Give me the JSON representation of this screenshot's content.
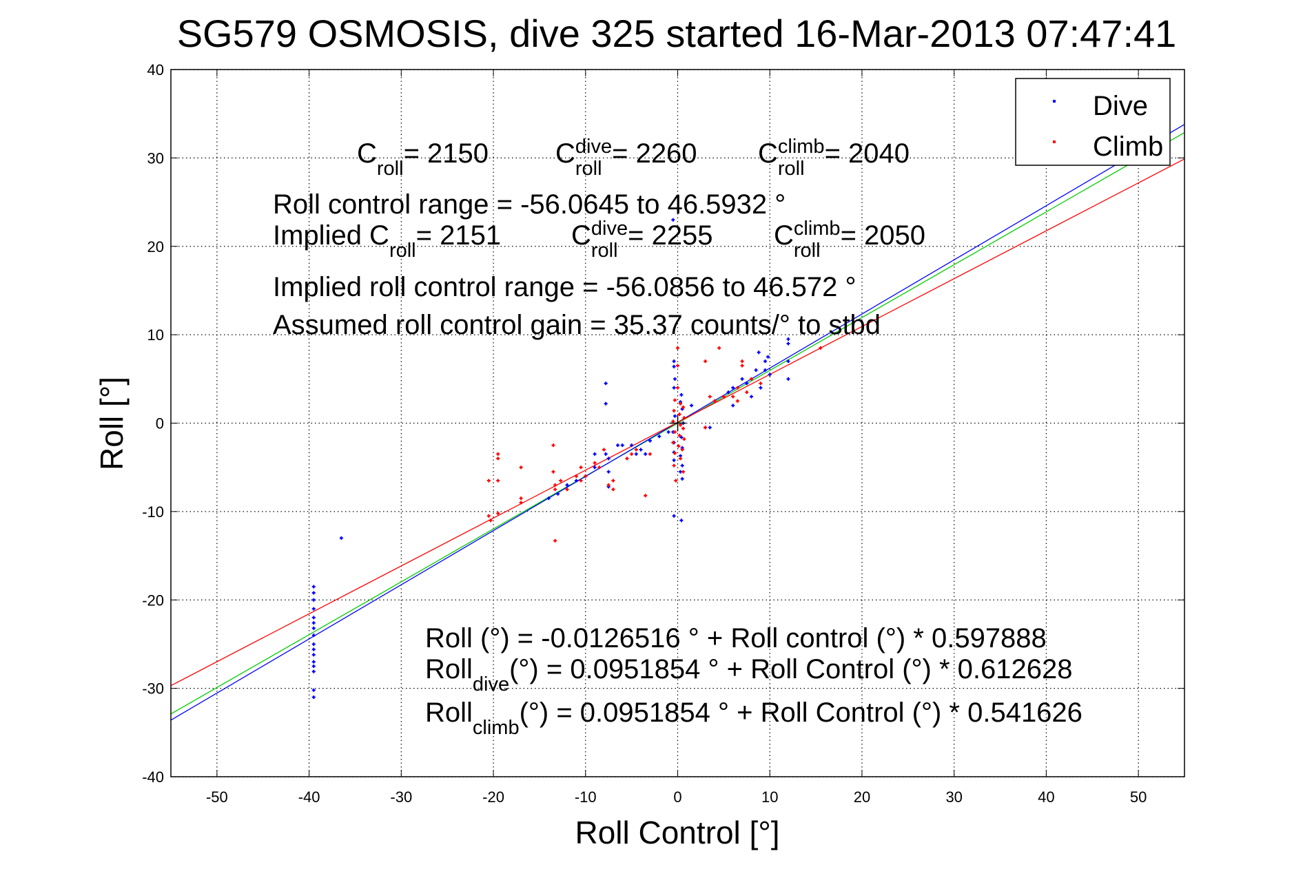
{
  "chart_data": {
    "type": "scatter",
    "title": "SG579 OSMOSIS, dive 325 started 16-Mar-2013 07:47:41",
    "xlabel": "Roll Control [°]",
    "ylabel": "Roll [°]",
    "xlim": [
      -55,
      55
    ],
    "ylim": [
      -40,
      40
    ],
    "xticks": [
      -50,
      -40,
      -30,
      -20,
      -10,
      0,
      10,
      20,
      30,
      40,
      50
    ],
    "yticks": [
      -40,
      -30,
      -20,
      -10,
      0,
      10,
      20,
      30,
      40
    ],
    "grid": true,
    "legend": {
      "position": "top-right",
      "entries": [
        "Dive",
        "Climb"
      ]
    },
    "colors": {
      "dive": "#0000ff",
      "climb": "#ff0000",
      "fit_all": "#00cc00"
    },
    "series": [
      {
        "name": "Dive",
        "color": "#0000ff",
        "points": [
          [
            -39.5,
            -18.5
          ],
          [
            -39.5,
            -19.2
          ],
          [
            -39.5,
            -20
          ],
          [
            -39.5,
            -21
          ],
          [
            -39.5,
            -22
          ],
          [
            -39.5,
            -22.6
          ],
          [
            -39.5,
            -23.2
          ],
          [
            -39.5,
            -24
          ],
          [
            -39.5,
            -25
          ],
          [
            -39.5,
            -25.6
          ],
          [
            -39.5,
            -26.2
          ],
          [
            -39.5,
            -27
          ],
          [
            -39.5,
            -27.5
          ],
          [
            -39.5,
            -28.1
          ],
          [
            -39.5,
            -30.2
          ],
          [
            -39.5,
            -31
          ],
          [
            -36.5,
            -13
          ],
          [
            -14,
            -8.5
          ],
          [
            -13,
            -8
          ],
          [
            -12,
            -7
          ],
          [
            -11,
            -6.5
          ],
          [
            -10,
            -6
          ],
          [
            -9,
            -5
          ],
          [
            -9,
            -3.5
          ],
          [
            -8,
            -3
          ],
          [
            -7.8,
            4.5
          ],
          [
            -7.8,
            2.2
          ],
          [
            -7.8,
            -3.5
          ],
          [
            -7.5,
            -4
          ],
          [
            -7.5,
            -5.5
          ],
          [
            -7.5,
            -7.2
          ],
          [
            -6.5,
            -2.5
          ],
          [
            -6,
            -2.5
          ],
          [
            -5,
            -2.5
          ],
          [
            -4.5,
            -3.5
          ],
          [
            -4,
            -3
          ],
          [
            -3.5,
            -3.5
          ],
          [
            -3,
            -2
          ],
          [
            -2,
            -1.5
          ],
          [
            -1,
            -1
          ],
          [
            -0.5,
            23
          ],
          [
            -0.4,
            7
          ],
          [
            -0.4,
            6.4
          ],
          [
            -0.3,
            5
          ],
          [
            -0.4,
            4
          ],
          [
            0.4,
            3.2
          ],
          [
            0.3,
            2.4
          ],
          [
            0.5,
            1.6
          ],
          [
            -0.3,
            0.8
          ],
          [
            0.6,
            0
          ],
          [
            -0.5,
            -1
          ],
          [
            0.4,
            -1.6
          ],
          [
            -0.4,
            -2.2
          ],
          [
            0.5,
            -2.8
          ],
          [
            -0.4,
            -3.3
          ],
          [
            0.3,
            -3.7
          ],
          [
            -0.4,
            -4.2
          ],
          [
            0.5,
            -4.8
          ],
          [
            0.3,
            -5.5
          ],
          [
            0.5,
            -6.3
          ],
          [
            -0.4,
            -10.5
          ],
          [
            0.4,
            -11
          ],
          [
            1.5,
            2
          ],
          [
            3,
            -0.5
          ],
          [
            3.5,
            -0.5
          ],
          [
            5.5,
            3.5
          ],
          [
            6,
            2
          ],
          [
            6,
            4
          ],
          [
            7,
            5
          ],
          [
            7.5,
            4.5
          ],
          [
            8,
            3
          ],
          [
            8.5,
            6
          ],
          [
            8.8,
            8
          ],
          [
            9,
            4
          ],
          [
            9.5,
            6
          ],
          [
            9.5,
            7
          ],
          [
            9.8,
            7.5
          ],
          [
            10,
            5.5
          ],
          [
            12,
            9
          ],
          [
            12,
            9.5
          ],
          [
            12,
            7
          ],
          [
            12,
            5
          ]
        ]
      },
      {
        "name": "Climb",
        "color": "#ff0000",
        "points": [
          [
            -20.5,
            -6.5
          ],
          [
            -20.5,
            -10.5
          ],
          [
            -20.3,
            -11
          ],
          [
            -19.5,
            -3.5
          ],
          [
            -19.5,
            -4
          ],
          [
            -19.5,
            -6.5
          ],
          [
            -19.5,
            -10.2
          ],
          [
            -17,
            -5
          ],
          [
            -17,
            -8.5
          ],
          [
            -17,
            -9
          ],
          [
            -13.5,
            -2.5
          ],
          [
            -13.5,
            -5.5
          ],
          [
            -13.3,
            -7
          ],
          [
            -13.3,
            -7.5
          ],
          [
            -13.3,
            -13.3
          ],
          [
            -12.7,
            -6.5
          ],
          [
            -12,
            -7.5
          ],
          [
            -11,
            -6
          ],
          [
            -10.5,
            -6.5
          ],
          [
            -10.5,
            -5
          ],
          [
            -10,
            -6
          ],
          [
            -9,
            -4.5
          ],
          [
            -8.5,
            -5
          ],
          [
            -8,
            -3
          ],
          [
            -7.5,
            -7
          ],
          [
            -7,
            -6.5
          ],
          [
            -7,
            -7.5
          ],
          [
            -5.5,
            -4
          ],
          [
            -5,
            -3.5
          ],
          [
            -4.5,
            -3
          ],
          [
            -3.5,
            -8.2
          ],
          [
            -3,
            -3.5
          ],
          [
            0,
            8.5
          ],
          [
            0,
            6.5
          ],
          [
            0,
            4
          ],
          [
            -0.3,
            2.6
          ],
          [
            0.3,
            2.2
          ],
          [
            0.6,
            1.8
          ],
          [
            -0.4,
            1.4
          ],
          [
            0.2,
            1
          ],
          [
            0.7,
            0.6
          ],
          [
            -0.5,
            0.2
          ],
          [
            0.3,
            -0.2
          ],
          [
            0.6,
            -0.6
          ],
          [
            -0.3,
            -1
          ],
          [
            0.2,
            -1.4
          ],
          [
            0.7,
            -1.8
          ],
          [
            -0.5,
            -2.2
          ],
          [
            0.1,
            -2.6
          ],
          [
            0.5,
            -3
          ],
          [
            -0.3,
            -3.4
          ],
          [
            0.3,
            -4
          ],
          [
            -0.4,
            -4.8
          ],
          [
            0.6,
            -5.5
          ],
          [
            -0.2,
            -6.5
          ],
          [
            3,
            -0.5
          ],
          [
            3,
            7
          ],
          [
            3.5,
            3
          ],
          [
            4,
            2.5
          ],
          [
            4.5,
            8.5
          ],
          [
            5,
            3
          ],
          [
            6,
            3
          ],
          [
            6.5,
            4
          ],
          [
            6.5,
            2.5
          ],
          [
            7,
            6.5
          ],
          [
            7,
            7
          ],
          [
            7.5,
            3.5
          ],
          [
            8,
            5
          ],
          [
            9,
            4.5
          ],
          [
            15.5,
            8.5
          ]
        ]
      }
    ],
    "fits": [
      {
        "name": "all",
        "color": "#00cc00",
        "intercept": -0.0126516,
        "slope": 0.597888
      },
      {
        "name": "dive",
        "color": "#0000ff",
        "intercept": 0.0951854,
        "slope": 0.612628
      },
      {
        "name": "climb",
        "color": "#ff0000",
        "intercept": 0.0951854,
        "slope": 0.541626
      }
    ],
    "annotations": [
      {
        "x": 518,
        "y": 236,
        "segs": [
          {
            "t": "C",
            "sub": "roll"
          },
          {
            "t": " = 2150"
          }
        ]
      },
      {
        "x": 806,
        "y": 236,
        "segs": [
          {
            "t": "C",
            "sub": "roll",
            "sup": "dive"
          },
          {
            "t": " = 2260"
          }
        ]
      },
      {
        "x": 1100,
        "y": 236,
        "segs": [
          {
            "t": "C",
            "sub": "roll",
            "sup": "climb"
          },
          {
            "t": " = 2040"
          }
        ]
      },
      {
        "x": 396,
        "y": 310,
        "segs": [
          {
            "t": "Roll control range = -56.0645 to 46.5932 °"
          }
        ]
      },
      {
        "x": 396,
        "y": 355,
        "segs": [
          {
            "t": "Implied C",
            "sub": "roll"
          },
          {
            "t": " = 2151"
          }
        ]
      },
      {
        "x": 829,
        "y": 355,
        "segs": [
          {
            "t": "C",
            "sub": "roll",
            "sup": "dive"
          },
          {
            "t": " = 2255"
          }
        ]
      },
      {
        "x": 1123,
        "y": 355,
        "segs": [
          {
            "t": "C",
            "sub": "roll",
            "sup": "climb"
          },
          {
            "t": " = 2050"
          }
        ]
      },
      {
        "x": 396,
        "y": 430,
        "segs": [
          {
            "t": "Implied roll control range = -56.0856 to 46.572 °"
          }
        ]
      },
      {
        "x": 396,
        "y": 485,
        "segs": [
          {
            "t": "Assumed roll control gain = 35.37 counts/° to stbd"
          }
        ]
      },
      {
        "x": 617,
        "y": 940,
        "segs": [
          {
            "t": "Roll (°) = -0.0126516 ° + Roll control (°) * 0.597888"
          }
        ]
      },
      {
        "x": 617,
        "y": 985,
        "segs": [
          {
            "t": "Roll",
            "sub": "dive"
          },
          {
            "t": " (°) = 0.0951854 ° + Roll Control (°) * 0.612628"
          }
        ]
      },
      {
        "x": 617,
        "y": 1048,
        "segs": [
          {
            "t": "Roll",
            "sub": "climb"
          },
          {
            "t": " (°) = 0.0951854 ° + Roll Control (°) * 0.541626"
          }
        ]
      }
    ]
  }
}
